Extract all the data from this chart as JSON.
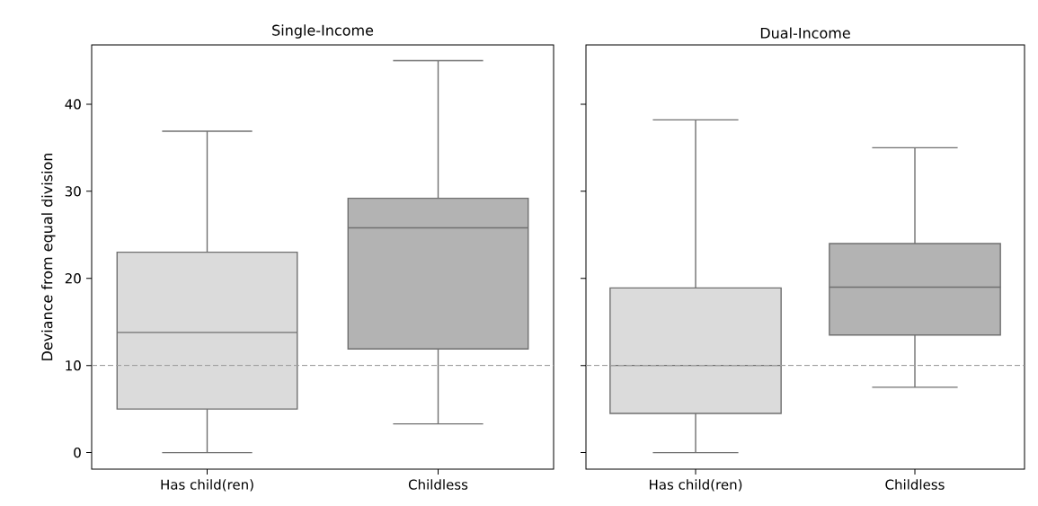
{
  "chart_data": [
    {
      "type": "box",
      "title": "Single-Income",
      "ylabel": "Deviance from equal division",
      "categories": [
        "Has child(ren)",
        "Childless"
      ],
      "colors": [
        "#dbdbdb",
        "#b3b3b3"
      ],
      "boxes": [
        {
          "low": 0,
          "q1": 5,
          "median": 13.8,
          "q3": 23,
          "high": 36.9
        },
        {
          "low": 3.3,
          "q1": 11.9,
          "median": 25.8,
          "q3": 29.2,
          "high": 45
        }
      ],
      "ylim": [
        -1.9,
        46.8
      ],
      "yticks": [
        0,
        10,
        20,
        30,
        40
      ],
      "grid": false,
      "ref_lines": [
        {
          "axis": "y",
          "value": 10,
          "color": "#a0a0a0",
          "line_style": "dashed"
        }
      ]
    },
    {
      "type": "box",
      "title": "Dual-Income",
      "categories": [
        "Has child(ren)",
        "Childless"
      ],
      "colors": [
        "#dbdbdb",
        "#b3b3b3"
      ],
      "boxes": [
        {
          "low": 0,
          "q1": 4.5,
          "median": 10,
          "q3": 18.9,
          "high": 38.2
        },
        {
          "low": 7.5,
          "q1": 13.5,
          "median": 19,
          "q3": 24,
          "high": 35
        }
      ],
      "ylim": [
        -1.9,
        46.8
      ],
      "yticks": [
        0,
        10,
        20,
        30,
        40
      ],
      "grid": false,
      "tick_labels": "x",
      "ref_lines": [
        {
          "axis": "y",
          "value": 10,
          "color": "#a0a0a0",
          "line_style": "dashed"
        }
      ]
    }
  ]
}
